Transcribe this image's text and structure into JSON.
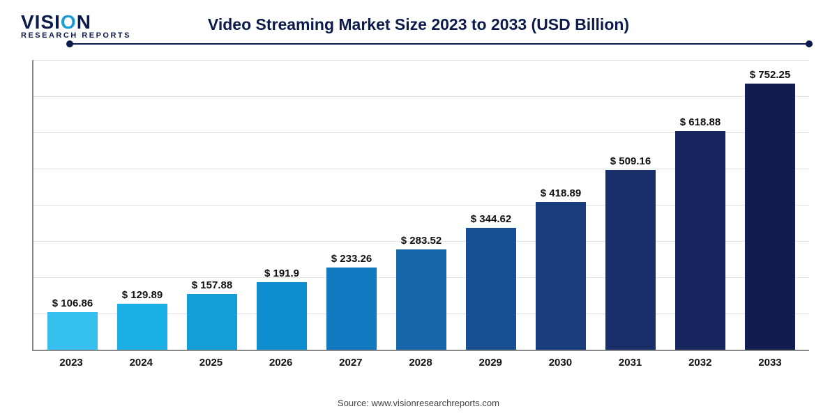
{
  "logo": {
    "text_main_pre": "VISI",
    "text_main_accent": "O",
    "text_main_post": "N",
    "text_sub": "RESEARCH REPORTS",
    "color_main": "#0d1b4c",
    "color_accent": "#1a9bd7"
  },
  "title": {
    "text": "Video Streaming Market Size 2023 to 2033 (USD Billion)",
    "color": "#0d1b4c",
    "fontsize": 23,
    "weight": 700
  },
  "rule": {
    "color": "#0d1b4c"
  },
  "chart": {
    "type": "bar",
    "ymax": 820,
    "ymin": 0,
    "gridline_count": 8,
    "grid_color": "#e2e2e6",
    "axis_color": "#888888",
    "background_color": "#ffffff",
    "bar_width_pct": 72,
    "label_prefix": "$ ",
    "label_fontsize": 15,
    "label_color": "#111111",
    "xlabel_fontsize": 15,
    "xlabel_color": "#111111",
    "categories": [
      "2023",
      "2024",
      "2025",
      "2026",
      "2027",
      "2028",
      "2029",
      "2030",
      "2031",
      "2032",
      "2033"
    ],
    "values": [
      106.86,
      129.89,
      157.88,
      191.9,
      233.26,
      283.52,
      344.62,
      418.89,
      509.16,
      618.88,
      752.25
    ],
    "bar_colors": [
      "#35c0f0",
      "#1ab0e6",
      "#139fd6",
      "#0f8fcf",
      "#1179bf",
      "#1566ab",
      "#184f93",
      "#1a3d7d",
      "#1a2f6a",
      "#17255e",
      "#111d50"
    ]
  },
  "source": {
    "text": "Source: www.visionresearchreports.com",
    "color": "#444444",
    "fontsize": 13
  }
}
